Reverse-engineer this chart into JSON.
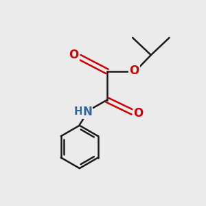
{
  "background_color": "#ebebeb",
  "bond_color": "#1a1a1a",
  "oxygen_color": "#cc0000",
  "nitrogen_color": "#336699",
  "h_color": "#336699",
  "line_width": 1.8,
  "figsize": [
    3.0,
    3.0
  ],
  "dpi": 100,
  "xlim": [
    0,
    10
  ],
  "ylim": [
    0,
    10
  ]
}
